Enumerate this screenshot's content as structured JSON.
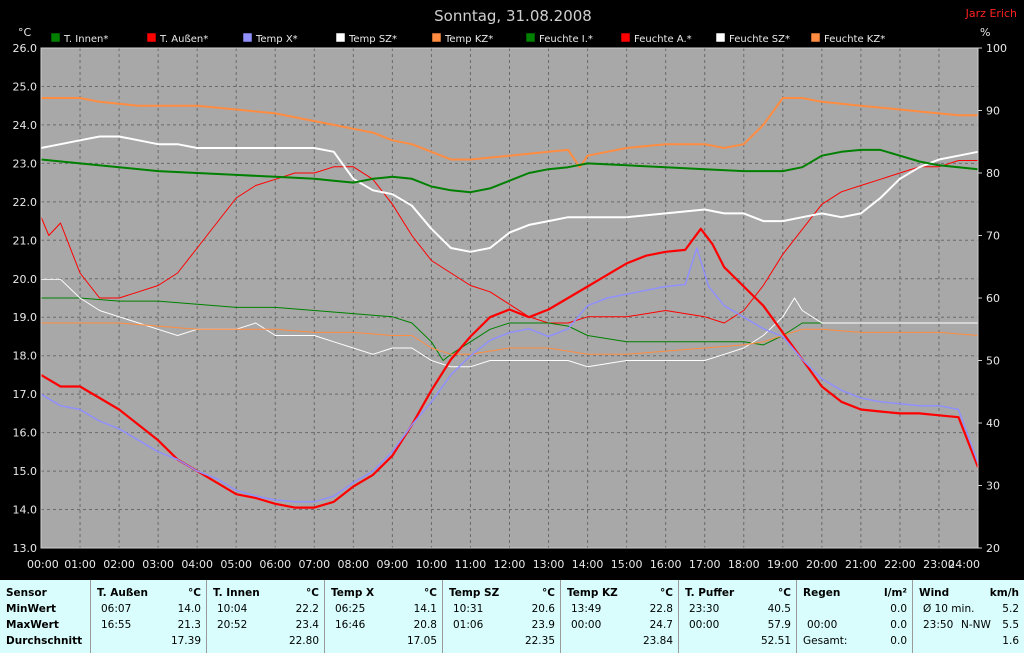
{
  "chart_data": {
    "type": "line",
    "title": "Sonntag, 31.08.2008",
    "author": "Jarz Erich",
    "ylabel_left": "°C",
    "ylabel_right": "%",
    "ylim_left": [
      13.0,
      26.0
    ],
    "ylim_right": [
      20,
      100
    ],
    "yticks_left": [
      "13.0",
      "14.0",
      "15.0",
      "16.0",
      "17.0",
      "18.0",
      "19.0",
      "20.0",
      "21.0",
      "22.0",
      "23.0",
      "24.0",
      "25.0",
      "26.0"
    ],
    "yticks_right": [
      "20",
      "30",
      "40",
      "50",
      "60",
      "70",
      "80",
      "90",
      "100"
    ],
    "xticks": [
      "00:00",
      "01:00",
      "02:00",
      "03:00",
      "04:00",
      "05:00",
      "06:00",
      "07:00",
      "08:00",
      "09:00",
      "10:00",
      "11:00",
      "12:00",
      "13:00",
      "14:00",
      "15:00",
      "16:00",
      "17:00",
      "18:00",
      "19:00",
      "20:00",
      "21:00",
      "22:00",
      "23:00",
      "24:00"
    ],
    "grid": true,
    "background": "#a8a8a8",
    "legend": [
      {
        "label": "T. Innen*",
        "color": "#008000"
      },
      {
        "label": "T. Außen*",
        "color": "#ff0000"
      },
      {
        "label": "Temp X*",
        "color": "#9090ff"
      },
      {
        "label": "Temp SZ*",
        "color": "#ffffff"
      },
      {
        "label": "Temp KZ*",
        "color": "#ff8c40"
      },
      {
        "label": "Feuchte I.*",
        "color": "#008000"
      },
      {
        "label": "Feuchte A.*",
        "color": "#ff0000"
      },
      {
        "label": "Feuchte SZ*",
        "color": "#ffffff"
      },
      {
        "label": "Feuchte KZ*",
        "color": "#ff8c40"
      }
    ],
    "series": [
      {
        "name": "T. Außen*",
        "axis": "left",
        "color": "#ff0000",
        "width": 2.2,
        "x": [
          0,
          0.5,
          1,
          1.5,
          2,
          2.5,
          3,
          3.5,
          4,
          4.5,
          5,
          5.5,
          6,
          6.5,
          7,
          7.5,
          8,
          8.5,
          9,
          9.5,
          10,
          10.5,
          11,
          11.5,
          12,
          12.5,
          13,
          13.5,
          14,
          14.5,
          15,
          15.5,
          16,
          16.5,
          16.9,
          17.2,
          17.5,
          18,
          18.5,
          19,
          19.5,
          20,
          20.5,
          21,
          21.5,
          22,
          22.5,
          23,
          23.5,
          24
        ],
        "y": [
          17.5,
          17.2,
          17.2,
          16.9,
          16.6,
          16.2,
          15.8,
          15.3,
          15.0,
          14.7,
          14.4,
          14.3,
          14.15,
          14.05,
          14.05,
          14.2,
          14.6,
          14.9,
          15.4,
          16.2,
          17.1,
          17.9,
          18.5,
          19.0,
          19.2,
          19.0,
          19.2,
          19.5,
          19.8,
          20.1,
          20.4,
          20.6,
          20.7,
          20.75,
          21.3,
          20.9,
          20.3,
          19.8,
          19.3,
          18.6,
          17.9,
          17.2,
          16.8,
          16.6,
          16.55,
          16.5,
          16.5,
          16.45,
          16.4,
          15.1
        ]
      },
      {
        "name": "Temp X*",
        "axis": "left",
        "color": "#9090ff",
        "width": 1.5,
        "x": [
          0,
          0.5,
          1,
          1.5,
          2,
          2.5,
          3,
          3.5,
          4,
          4.5,
          5,
          5.5,
          6,
          6.5,
          7,
          7.5,
          8,
          8.5,
          9,
          9.5,
          10,
          10.5,
          11,
          11.5,
          12,
          12.5,
          13,
          13.5,
          14,
          14.5,
          15,
          15.5,
          16,
          16.5,
          16.8,
          17.1,
          17.5,
          18,
          18.5,
          19,
          19.5,
          20,
          20.5,
          21,
          21.5,
          22,
          22.5,
          23,
          23.5,
          24
        ],
        "y": [
          17.0,
          16.7,
          16.6,
          16.3,
          16.1,
          15.8,
          15.5,
          15.3,
          15.0,
          14.8,
          14.5,
          14.35,
          14.25,
          14.2,
          14.2,
          14.35,
          14.7,
          15.0,
          15.5,
          16.2,
          16.8,
          17.5,
          18.0,
          18.4,
          18.6,
          18.7,
          18.5,
          18.7,
          19.3,
          19.5,
          19.6,
          19.7,
          19.8,
          19.85,
          20.8,
          19.8,
          19.3,
          19.0,
          18.7,
          18.5,
          17.9,
          17.4,
          17.1,
          16.9,
          16.8,
          16.75,
          16.7,
          16.7,
          16.6,
          15.2
        ]
      },
      {
        "name": "Temp SZ*",
        "axis": "left",
        "color": "#ffffff",
        "width": 2.0,
        "x": [
          0,
          0.5,
          1,
          1.5,
          2,
          2.5,
          3,
          3.5,
          4,
          5,
          6,
          7,
          7.5,
          8,
          8.5,
          9,
          9.5,
          10,
          10.5,
          11,
          11.5,
          12,
          12.5,
          13,
          13.5,
          14,
          15,
          16,
          17,
          17.5,
          18,
          18.5,
          19,
          19.5,
          20,
          20.5,
          21,
          21.5,
          22,
          22.5,
          23,
          23.5,
          24
        ],
        "y": [
          23.4,
          23.5,
          23.6,
          23.7,
          23.7,
          23.6,
          23.5,
          23.5,
          23.4,
          23.4,
          23.4,
          23.4,
          23.3,
          22.6,
          22.3,
          22.2,
          21.9,
          21.3,
          20.8,
          20.7,
          20.8,
          21.2,
          21.4,
          21.5,
          21.6,
          21.6,
          21.6,
          21.7,
          21.8,
          21.7,
          21.7,
          21.5,
          21.5,
          21.6,
          21.7,
          21.6,
          21.7,
          22.1,
          22.6,
          22.9,
          23.1,
          23.2,
          23.3
        ]
      },
      {
        "name": "Temp KZ*",
        "axis": "left",
        "color": "#ff8c40",
        "width": 2.0,
        "x": [
          0,
          0.5,
          1,
          1.5,
          2,
          2.5,
          3,
          3.5,
          4,
          5,
          6,
          7,
          7.5,
          8,
          8.5,
          9,
          9.5,
          10,
          10.5,
          11,
          11.5,
          12,
          12.5,
          13,
          13.5,
          13.8,
          14,
          14.5,
          15,
          16,
          17,
          17.5,
          18,
          18.5,
          19,
          19.5,
          20,
          20.5,
          21,
          21.5,
          22,
          22.5,
          23,
          23.5,
          24
        ],
        "y": [
          24.7,
          24.7,
          24.7,
          24.6,
          24.55,
          24.5,
          24.5,
          24.5,
          24.5,
          24.4,
          24.3,
          24.1,
          24.0,
          23.9,
          23.8,
          23.6,
          23.5,
          23.3,
          23.1,
          23.1,
          23.15,
          23.2,
          23.25,
          23.3,
          23.35,
          22.9,
          23.2,
          23.3,
          23.4,
          23.5,
          23.5,
          23.4,
          23.5,
          24.0,
          24.7,
          24.7,
          24.6,
          24.55,
          24.5,
          24.45,
          24.4,
          24.35,
          24.3,
          24.25,
          24.25
        ]
      },
      {
        "name": "T. Innen*",
        "axis": "left",
        "color": "#008000",
        "width": 2.0,
        "x": [
          0,
          1,
          2,
          3,
          4,
          5,
          6,
          7,
          7.5,
          8,
          8.5,
          9,
          9.5,
          10,
          10.5,
          11,
          11.5,
          12,
          12.5,
          13,
          13.5,
          14,
          15,
          16,
          17,
          18,
          18.5,
          19,
          19.5,
          20,
          20.5,
          21,
          21.5,
          22,
          22.5,
          23,
          23.5,
          24
        ],
        "y": [
          23.1,
          23.0,
          22.9,
          22.8,
          22.75,
          22.7,
          22.65,
          22.6,
          22.55,
          22.5,
          22.6,
          22.65,
          22.6,
          22.4,
          22.3,
          22.25,
          22.35,
          22.55,
          22.75,
          22.85,
          22.9,
          23.0,
          22.95,
          22.9,
          22.85,
          22.8,
          22.8,
          22.8,
          22.9,
          23.2,
          23.3,
          23.35,
          23.35,
          23.2,
          23.05,
          22.95,
          22.9,
          22.85
        ]
      },
      {
        "name": "Feuchte A.*",
        "axis": "right",
        "color": "#ff0000",
        "width": 1.0,
        "x": [
          0,
          0.2,
          0.5,
          1,
          1.5,
          2,
          2.5,
          3,
          3.5,
          4,
          4.5,
          5,
          5.5,
          6,
          6.5,
          7,
          7.5,
          8,
          8.5,
          9,
          9.5,
          10,
          10.5,
          11,
          11.5,
          12,
          12.5,
          13,
          13.5,
          14,
          15,
          16,
          17,
          17.5,
          18,
          18.5,
          19,
          19.5,
          20,
          20.5,
          21,
          21.5,
          22,
          22.5,
          23,
          23.5,
          24
        ],
        "y": [
          73,
          70,
          72,
          64,
          60,
          60,
          61,
          62,
          64,
          68,
          72,
          76,
          78,
          79,
          80,
          80,
          81,
          81,
          79,
          75,
          70,
          66,
          64,
          62,
          61,
          59,
          57,
          56,
          56,
          57,
          57,
          58,
          57,
          56,
          58,
          62,
          67,
          71,
          75,
          77,
          78,
          79,
          80,
          81,
          81,
          82,
          82
        ]
      },
      {
        "name": "Feuchte I.*",
        "axis": "right",
        "color": "#008000",
        "width": 1.0,
        "x": [
          0,
          1,
          2,
          3,
          4,
          5,
          6,
          7,
          8,
          9,
          9.5,
          10,
          10.3,
          10.5,
          11,
          11.5,
          12,
          12.5,
          13,
          13.5,
          14,
          15,
          16,
          17,
          18,
          18.5,
          19,
          19.5,
          20,
          21,
          22,
          23,
          24
        ],
        "y": [
          60,
          60,
          59.5,
          59.5,
          59,
          58.5,
          58.5,
          58,
          57.5,
          57,
          56,
          53,
          50,
          51,
          53,
          55,
          56,
          56,
          56,
          55.5,
          54,
          53,
          53,
          53,
          53,
          52.5,
          54,
          56,
          56,
          56,
          56,
          56,
          56
        ]
      },
      {
        "name": "Feuchte SZ*",
        "axis": "right",
        "color": "#ffffff",
        "width": 1.0,
        "x": [
          0,
          0.5,
          1,
          1.5,
          2,
          2.5,
          3,
          3.5,
          4,
          4.5,
          5,
          5.5,
          6,
          6.5,
          7,
          7.5,
          8,
          8.5,
          9,
          9.5,
          10,
          10.5,
          11,
          11.5,
          12,
          12.5,
          13,
          13.5,
          14,
          15,
          16,
          17,
          17.5,
          18,
          18.5,
          19,
          19.3,
          19.5,
          20,
          21,
          22,
          23,
          24
        ],
        "y": [
          63,
          63,
          60,
          58,
          57,
          56,
          55,
          54,
          55,
          55,
          55,
          56,
          54,
          54,
          54,
          53,
          52,
          51,
          52,
          52,
          50,
          49,
          49,
          50,
          50,
          50,
          50,
          50,
          49,
          50,
          50,
          50,
          51,
          52,
          54,
          57,
          60,
          58,
          56,
          56,
          56,
          56,
          56
        ]
      },
      {
        "name": "Feuchte KZ*",
        "axis": "right",
        "color": "#ff8c40",
        "width": 1.0,
        "x": [
          0,
          1,
          2,
          3,
          4,
          5,
          6,
          7,
          8,
          9,
          9.5,
          10,
          10.5,
          11,
          11.5,
          12,
          12.5,
          13,
          13.5,
          14,
          15,
          16,
          17,
          18,
          18.5,
          19,
          19.5,
          20,
          21,
          22,
          23,
          24
        ],
        "y": [
          56,
          56,
          56,
          55.5,
          55,
          55,
          55,
          54.5,
          54.5,
          54,
          54,
          52,
          51,
          51,
          51.5,
          52,
          52,
          52,
          51.5,
          51,
          51,
          51.5,
          52,
          52.5,
          53,
          54,
          55,
          55,
          54.5,
          54.5,
          54.5,
          54
        ]
      }
    ]
  },
  "stats": {
    "groups": [
      {
        "name": "Sensor",
        "unit": "",
        "rows": [
          "MinWert",
          "MaxWert",
          "Durchschnitt"
        ]
      },
      {
        "name": "T. Außen",
        "unit": "°C",
        "min_time": "06:07",
        "min_val": "14.0",
        "max_time": "16:55",
        "max_val": "21.3",
        "avg": "17.39"
      },
      {
        "name": "T. Innen",
        "unit": "°C",
        "min_time": "10:04",
        "min_val": "22.2",
        "max_time": "20:52",
        "max_val": "23.4",
        "avg": "22.80"
      },
      {
        "name": "Temp X",
        "unit": "°C",
        "min_time": "06:25",
        "min_val": "14.1",
        "max_time": "16:46",
        "max_val": "20.8",
        "avg": "17.05"
      },
      {
        "name": "Temp SZ",
        "unit": "°C",
        "min_time": "10:31",
        "min_val": "20.6",
        "max_time": "01:06",
        "max_val": "23.9",
        "avg": "22.35"
      },
      {
        "name": "Temp KZ",
        "unit": "°C",
        "min_time": "13:49",
        "min_val": "22.8",
        "max_time": "00:00",
        "max_val": "24.7",
        "avg": "23.84"
      },
      {
        "name": "T. Puffer",
        "unit": "°C",
        "min_time": "23:30",
        "min_val": "40.5",
        "max_time": "00:00",
        "max_val": "57.9",
        "avg": "52.51"
      },
      {
        "name": "Regen",
        "unit": "l/m²",
        "min_time": "",
        "min_val": "0.0",
        "max_time": "00:00",
        "max_val": "0.0",
        "avg_label": "Gesamt:",
        "avg": "0.0"
      },
      {
        "name": "Wind",
        "unit": "km/h",
        "min_time": "Ø 10 min.",
        "min_val": "5.2",
        "max_time": "23:50",
        "max_dir": "N-NW",
        "max_val": "5.5",
        "avg": "1.6"
      }
    ]
  }
}
